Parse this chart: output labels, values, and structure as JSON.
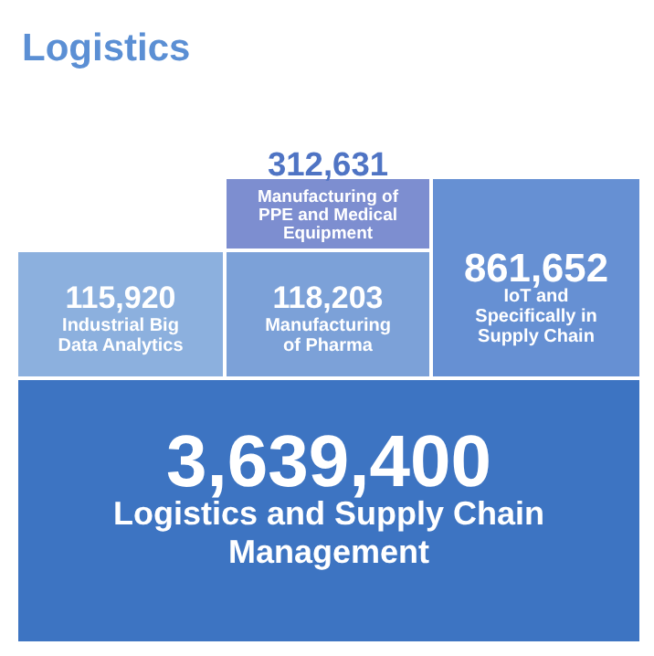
{
  "chart_data": {
    "type": "other",
    "title": "Logistics",
    "categories": [
      "Logistics and Supply Chain Management",
      "Industrial Big Data Analytics",
      "Manufacturing of Pharma",
      "Manufacturing of PPE and Medical Equipment",
      "IoT and Specifically in Supply Chain"
    ],
    "values": [
      3639400,
      115920,
      118203,
      312631,
      861652
    ],
    "value_labels": [
      "3,639,400",
      "115,920",
      "118,203",
      "312,631",
      "861,652"
    ],
    "colors": [
      "#3d74c2",
      "#8cb0de",
      "#7ca1d8",
      "#7d8ed0",
      "#6690d3"
    ]
  }
}
